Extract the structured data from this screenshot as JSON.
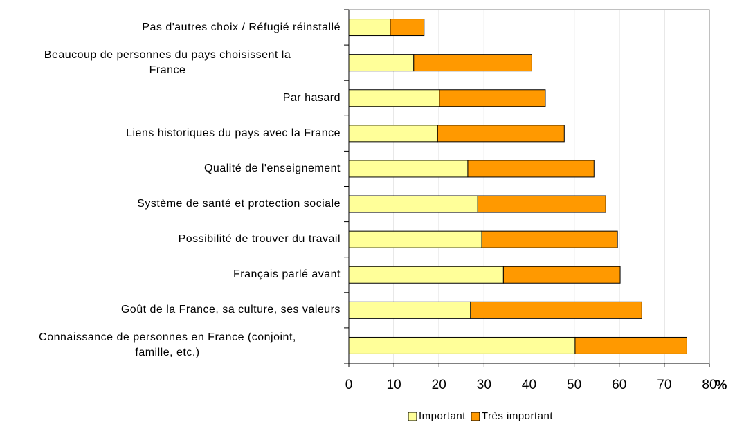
{
  "chart_data": {
    "type": "stacked_barh",
    "categories": [
      "Pas d'autres choix / Réfugié réinstallé",
      "Beaucoup de personnes du pays choisissent la\nFrance",
      "Par hasard",
      "Liens historiques du pays avec la France",
      "Qualité de l'enseignement",
      "Système de santé et protection sociale",
      "Possibilité de trouver du travail",
      "Français parlé avant",
      "Goût de la France, sa culture, ses valeurs",
      "Connaissance de personnes en France (conjoint,\nfamille, etc.)"
    ],
    "series": [
      {
        "name": "Important",
        "color": "#ffff99",
        "values": [
          9.2,
          14.4,
          20.1,
          19.7,
          26.4,
          28.6,
          29.5,
          34.3,
          27.0,
          50.2
        ]
      },
      {
        "name": "Très important",
        "color": "#ff9900",
        "values": [
          7.5,
          26.2,
          23.5,
          28.1,
          28.0,
          28.4,
          30.1,
          25.9,
          38.0,
          24.8
        ]
      }
    ],
    "xlim": [
      0,
      80
    ],
    "xticks": [
      0,
      10,
      20,
      30,
      40,
      50,
      60,
      70,
      80
    ],
    "xlabel": "%",
    "grid": true,
    "legend": "bottom"
  }
}
